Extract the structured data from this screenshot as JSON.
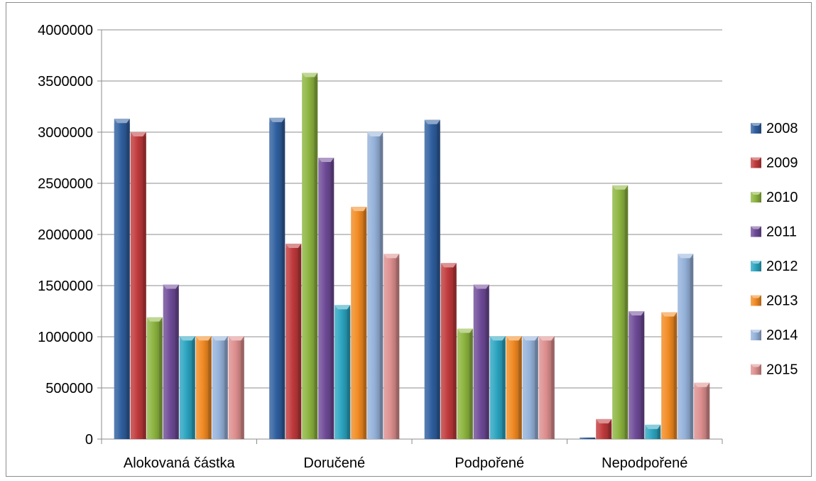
{
  "chart_data": {
    "type": "bar",
    "title": "",
    "xlabel": "",
    "ylabel": "",
    "ylim": [
      0,
      4000000
    ],
    "yticks": [
      0,
      500000,
      1000000,
      1500000,
      2000000,
      2500000,
      3000000,
      3500000,
      4000000
    ],
    "ytick_labels": [
      "0",
      "500000",
      "1000000",
      "1500000",
      "2000000",
      "2500000",
      "3000000",
      "3500000",
      "4000000"
    ],
    "grid": true,
    "legend_position": "right",
    "categories": [
      "Alokovaná částka",
      "Doručené",
      "Podpořené",
      "Nepodpořené"
    ],
    "series": [
      {
        "name": "2008",
        "color": "#2f5f9f",
        "values": [
          3130000,
          3140000,
          3120000,
          15000
        ]
      },
      {
        "name": "2009",
        "color": "#c0393b",
        "values": [
          3000000,
          1910000,
          1720000,
          195000
        ]
      },
      {
        "name": "2010",
        "color": "#8cb43f",
        "values": [
          1190000,
          3580000,
          1080000,
          2480000
        ]
      },
      {
        "name": "2011",
        "color": "#6e4a97",
        "values": [
          1510000,
          2750000,
          1510000,
          1250000
        ]
      },
      {
        "name": "2012",
        "color": "#2ba4c0",
        "values": [
          1005000,
          1310000,
          1005000,
          140000
        ]
      },
      {
        "name": "2013",
        "color": "#f18a22",
        "values": [
          1005000,
          2270000,
          1005000,
          1240000
        ]
      },
      {
        "name": "2014",
        "color": "#94b1d9",
        "values": [
          1005000,
          3000000,
          1005000,
          1810000
        ]
      },
      {
        "name": "2015",
        "color": "#dc8e8d",
        "values": [
          1005000,
          1810000,
          1005000,
          550000
        ]
      }
    ]
  }
}
